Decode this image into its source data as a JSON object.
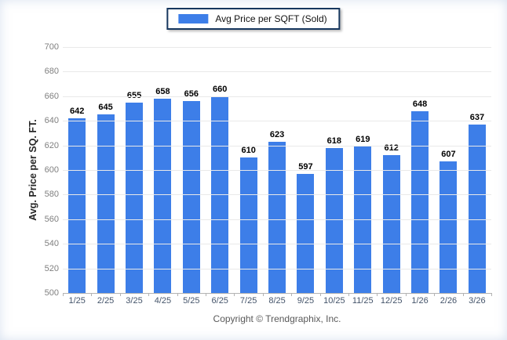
{
  "legend": {
    "label": "Avg Price per SQFT (Sold)"
  },
  "y_axis": {
    "title": "Avg. Price per SQ. FT."
  },
  "footer": {
    "copyright": "Copyright © Trendgraphix, Inc."
  },
  "colors": {
    "bar": "#3D7EE8",
    "legend_border": "#17375E",
    "grid": "#E9E9E9",
    "baseline": "#B3B3B3",
    "value_label": "#000000",
    "x_tick_label": "#44546A",
    "y_tick_label": "#7F7F7F"
  },
  "chart_data": {
    "type": "bar",
    "title": "",
    "xlabel": "",
    "ylabel": "Avg. Price per SQ. FT.",
    "legend_position": "top-center",
    "grid": true,
    "data_labels": true,
    "ylim": [
      500,
      700
    ],
    "ytick_step": 20,
    "categories": [
      "1/25",
      "2/25",
      "3/25",
      "4/25",
      "5/25",
      "6/25",
      "7/25",
      "8/25",
      "9/25",
      "10/25",
      "11/25",
      "12/25",
      "1/26",
      "2/26",
      "3/26"
    ],
    "series": [
      {
        "name": "Avg Price per SQFT (Sold)",
        "values": [
          642,
          645,
          655,
          658,
          656,
          660,
          610,
          623,
          597,
          618,
          619,
          612,
          648,
          607,
          637
        ]
      }
    ]
  }
}
